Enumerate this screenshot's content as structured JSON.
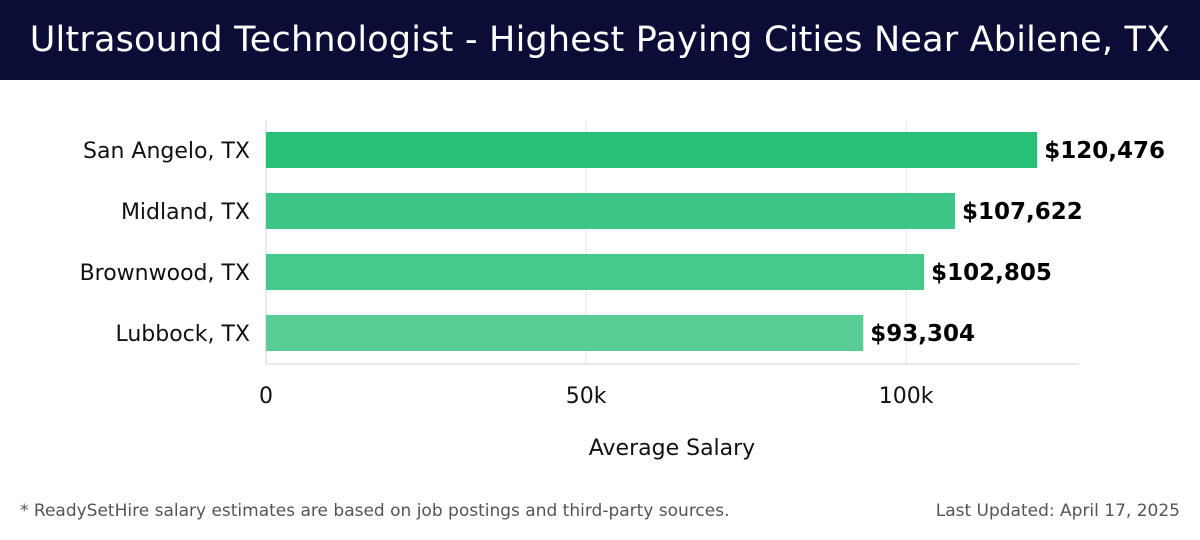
{
  "header": {
    "title": "Ultrasound Technologist - Highest Paying Cities Near Abilene, TX"
  },
  "footer": {
    "note": "* ReadySetHire salary estimates are based on job postings and third-party sources.",
    "updated": "Last Updated: April 17, 2025"
  },
  "chart_data": {
    "type": "bar",
    "orientation": "horizontal",
    "categories": [
      "San Angelo, TX",
      "Midland, TX",
      "Brownwood, TX",
      "Lubbock, TX"
    ],
    "values": [
      120476,
      107622,
      102805,
      93304
    ],
    "value_labels": [
      "$120,476",
      "$107,622",
      "$102,805",
      "$93,304"
    ],
    "xlabel": "Average Salary",
    "xlim": [
      0,
      127000
    ],
    "xticks": [
      0,
      50000,
      100000
    ],
    "xtick_labels": [
      "0",
      "50k",
      "100k"
    ],
    "grid": true,
    "colors": [
      "#28c076",
      "#3ec686",
      "#46c98b",
      "#5acd97"
    ]
  }
}
